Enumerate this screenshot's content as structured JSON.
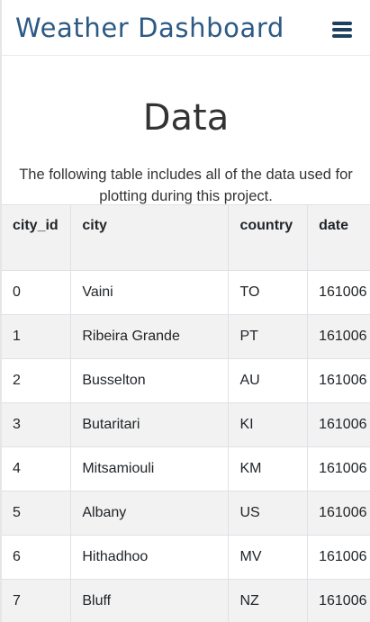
{
  "navbar": {
    "brand": "Weather Dashboard",
    "menu_icon": "hamburger-menu-icon"
  },
  "main": {
    "title": "Data",
    "description": "The following table includes all of the data used for plotting during this project."
  },
  "table": {
    "columns": [
      "city_id",
      "city",
      "country",
      "date"
    ],
    "rows": [
      [
        "0",
        "Vaini",
        "TO",
        "161006"
      ],
      [
        "1",
        "Ribeira Grande",
        "PT",
        "161006"
      ],
      [
        "2",
        "Busselton",
        "AU",
        "161006"
      ],
      [
        "3",
        "Butaritari",
        "KI",
        "161006"
      ],
      [
        "4",
        "Mitsamiouli",
        "KM",
        "161006"
      ],
      [
        "5",
        "Albany",
        "US",
        "161006"
      ],
      [
        "6",
        "Hithadhoo",
        "MV",
        "161006"
      ],
      [
        "7",
        "Bluff",
        "NZ",
        "161006"
      ]
    ]
  },
  "colors": {
    "brand": "#2c5a85",
    "menu_icon": "#1f3f5e",
    "stripe": "#f2f2f2"
  }
}
